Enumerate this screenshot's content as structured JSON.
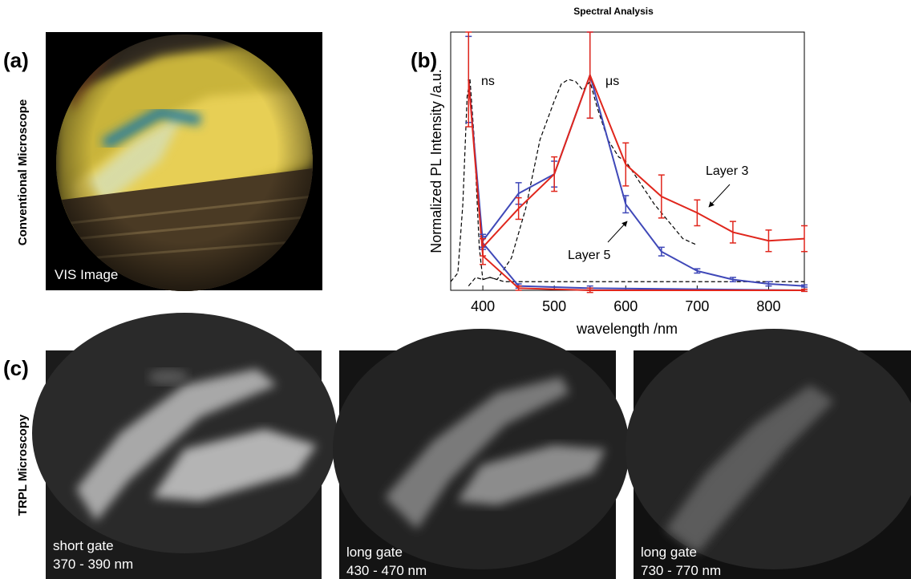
{
  "panels": {
    "a": {
      "label": "(a)",
      "side_label": "Conventional Microscope",
      "caption": "VIS Image"
    },
    "c": {
      "label": "(c)",
      "side_label": "TRPL Microscopy",
      "images": [
        {
          "caption": [
            "short gate",
            "370 - 390 nm"
          ]
        },
        {
          "caption": [
            "long gate",
            "430 - 470 nm"
          ]
        },
        {
          "caption": [
            "long gate",
            "730 - 770 nm"
          ]
        }
      ]
    }
  },
  "chart_data": {
    "type": "line",
    "label": "(b)",
    "title": "Spectral Analysis",
    "x_label": "wavelength /nm",
    "y_label": "Normalized PL Intensity /a.u.",
    "xlim": [
      355,
      850
    ],
    "ylim": [
      0,
      1.2
    ],
    "xticks": [
      400,
      500,
      600,
      700,
      800
    ],
    "annotations": [
      "ns",
      "μs",
      "Layer 3",
      "Layer 5"
    ],
    "series": [
      {
        "color": "#000000",
        "dash": true,
        "x": [
          355,
          365,
          372,
          378,
          382,
          388,
          395,
          400,
          410,
          430,
          500,
          600,
          700,
          850
        ],
        "values": [
          0.04,
          0.08,
          0.4,
          0.9,
          0.98,
          0.7,
          0.2,
          0.05,
          0.06,
          0.04,
          0.04,
          0.04,
          0.04,
          0.04
        ]
      },
      {
        "color": "#000000",
        "dash": true,
        "x": [
          380,
          390,
          400,
          410,
          420,
          440,
          460,
          480,
          500,
          510,
          520,
          530,
          540,
          550,
          560,
          575,
          590,
          600,
          620,
          640,
          660,
          680,
          700
        ],
        "values": [
          0.02,
          0.06,
          0.05,
          0.06,
          0.05,
          0.15,
          0.38,
          0.7,
          0.88,
          0.96,
          0.98,
          0.97,
          0.93,
          0.97,
          0.85,
          0.7,
          0.62,
          0.6,
          0.5,
          0.4,
          0.32,
          0.24,
          0.21
        ]
      },
      {
        "color": "#3f48b8",
        "x": [
          380,
          400,
          450,
          550,
          850
        ],
        "values": [
          0.98,
          0.22,
          0.02,
          0.01,
          0.0
        ],
        "errors": [
          0.2,
          0.03,
          0.01,
          0.01,
          0.005
        ]
      },
      {
        "color": "#e0261c",
        "x": [
          380,
          400,
          450,
          550,
          850
        ],
        "values": [
          0.98,
          0.16,
          0.01,
          0.0,
          0.0
        ],
        "errors": [
          0.22,
          0.04,
          0.01,
          0.01,
          0.005
        ]
      },
      {
        "name": "Layer 5",
        "color": "#3f48b8",
        "x": [
          400,
          450,
          500,
          550,
          600,
          650,
          700,
          750,
          800,
          850
        ],
        "values": [
          0.23,
          0.45,
          0.54,
          1.0,
          0.4,
          0.18,
          0.09,
          0.05,
          0.03,
          0.02
        ],
        "errors": [
          0.03,
          0.05,
          0.06,
          0.2,
          0.04,
          0.02,
          0.01,
          0.01,
          0.01,
          0.005
        ]
      },
      {
        "name": "Layer 3",
        "color": "#e0261c",
        "x": [
          400,
          450,
          500,
          550,
          600,
          650,
          700,
          750,
          800,
          850
        ],
        "values": [
          0.2,
          0.38,
          0.54,
          1.0,
          0.585,
          0.436,
          0.36,
          0.27,
          0.23,
          0.24
        ],
        "errors": [
          0.04,
          0.05,
          0.08,
          0.2,
          0.1,
          0.1,
          0.06,
          0.05,
          0.05,
          0.06
        ]
      }
    ]
  }
}
